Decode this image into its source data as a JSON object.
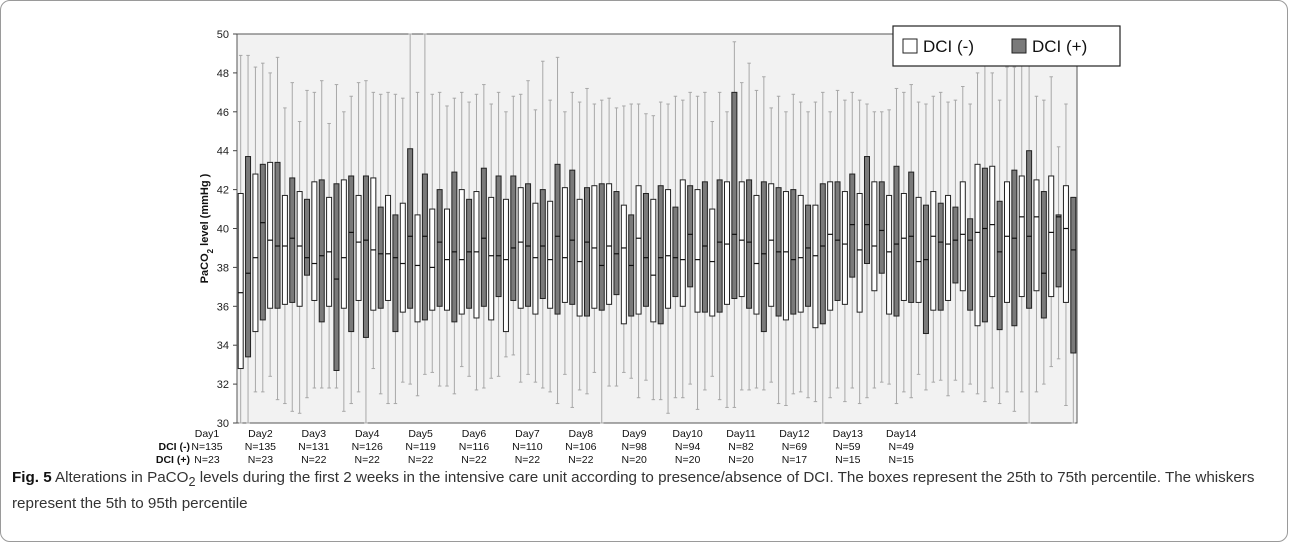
{
  "chart_data": {
    "type": "box",
    "ylabel": "PaCO",
    "ylabel_sub": "2",
    "ylabel_rest": " level (mmHg )",
    "ylim": [
      30,
      50
    ],
    "yticks": [
      "30",
      "32",
      "34",
      "36",
      "38",
      "40",
      "42",
      "44",
      "46",
      "48",
      "50"
    ],
    "legend_labels": [
      "DCI (-)",
      "DCI (+)"
    ],
    "legend_position": "top-right",
    "colors": {
      "dci_neg": "#ffffff",
      "dci_pos": "#7a7a7a",
      "plot_bg": "#f2f2f2",
      "whisker": "#a8a8a8"
    },
    "row_labels": [
      "DCI (-)",
      "DCI (+)"
    ],
    "days": [
      {
        "label": "Day1",
        "n_neg": "N=135",
        "n_pos": "N=23"
      },
      {
        "label": "Day2",
        "n_neg": "N=135",
        "n_pos": "N=23"
      },
      {
        "label": "Day3",
        "n_neg": "N=131",
        "n_pos": "N=22"
      },
      {
        "label": "Day4",
        "n_neg": "N=126",
        "n_pos": "N=22"
      },
      {
        "label": "Day5",
        "n_neg": "N=119",
        "n_pos": "N=22"
      },
      {
        "label": "Day6",
        "n_neg": "N=116",
        "n_pos": "N=22"
      },
      {
        "label": "Day7",
        "n_neg": "N=110",
        "n_pos": "N=22"
      },
      {
        "label": "Day8",
        "n_neg": "N=106",
        "n_pos": "N=22"
      },
      {
        "label": "Day9",
        "n_neg": "N=98",
        "n_pos": "N=20"
      },
      {
        "label": "Day10",
        "n_neg": "N=94",
        "n_pos": "N=20"
      },
      {
        "label": "Day11",
        "n_neg": "N=82",
        "n_pos": "N=20"
      },
      {
        "label": "Day12",
        "n_neg": "N=69",
        "n_pos": "N=17"
      },
      {
        "label": "Day13",
        "n_neg": "N=59",
        "n_pos": "N=15"
      },
      {
        "label": "Day14",
        "n_neg": "N=49",
        "n_pos": "N=15"
      }
    ],
    "boxes": [
      {
        "g": "neg",
        "q1": 32.8,
        "med": 36.7,
        "q3": 41.8,
        "lo": 30.0,
        "hi": 48.9
      },
      {
        "g": "pos",
        "q1": 33.4,
        "med": 37.7,
        "q3": 43.7,
        "lo": 30.0,
        "hi": 48.9
      },
      {
        "g": "neg",
        "q1": 34.7,
        "med": 38.5,
        "q3": 42.8,
        "lo": 31.6,
        "hi": 48.3
      },
      {
        "g": "pos",
        "q1": 35.3,
        "med": 40.3,
        "q3": 43.3,
        "lo": 31.6,
        "hi": 48.5
      },
      {
        "g": "neg",
        "q1": 35.9,
        "med": 39.4,
        "q3": 43.4,
        "lo": 32.4,
        "hi": 48.0
      },
      {
        "g": "pos",
        "q1": 35.9,
        "med": 39.1,
        "q3": 43.4,
        "lo": 31.2,
        "hi": 48.8
      },
      {
        "g": "neg",
        "q1": 36.1,
        "med": 39.1,
        "q3": 41.7,
        "lo": 31.0,
        "hi": 46.2
      },
      {
        "g": "pos",
        "q1": 36.2,
        "med": 39.5,
        "q3": 42.6,
        "lo": 30.6,
        "hi": 47.5
      },
      {
        "g": "neg",
        "q1": 36.0,
        "med": 39.1,
        "q3": 41.9,
        "lo": 30.5,
        "hi": 45.5
      },
      {
        "g": "pos",
        "q1": 37.6,
        "med": 38.5,
        "q3": 41.5,
        "lo": 31.3,
        "hi": 47.1
      },
      {
        "g": "neg",
        "q1": 36.3,
        "med": 38.2,
        "q3": 42.4,
        "lo": 31.8,
        "hi": 47.0
      },
      {
        "g": "pos",
        "q1": 35.2,
        "med": 38.6,
        "q3": 42.5,
        "lo": 31.8,
        "hi": 47.6
      },
      {
        "g": "neg",
        "q1": 36.0,
        "med": 38.8,
        "q3": 41.6,
        "lo": 31.8,
        "hi": 45.4
      },
      {
        "g": "pos",
        "q1": 32.7,
        "med": 37.4,
        "q3": 42.3,
        "lo": 31.8,
        "hi": 47.4
      },
      {
        "g": "neg",
        "q1": 35.9,
        "med": 38.5,
        "q3": 42.5,
        "lo": 30.6,
        "hi": 46.0
      },
      {
        "g": "pos",
        "q1": 34.7,
        "med": 39.8,
        "q3": 42.7,
        "lo": 31.0,
        "hi": 46.8
      },
      {
        "g": "neg",
        "q1": 36.3,
        "med": 39.3,
        "q3": 41.7,
        "lo": 31.6,
        "hi": 47.5
      },
      {
        "g": "pos",
        "q1": 34.4,
        "med": 39.4,
        "q3": 42.7,
        "lo": 30.0,
        "hi": 47.6
      },
      {
        "g": "neg",
        "q1": 35.8,
        "med": 38.9,
        "q3": 42.6,
        "lo": 32.8,
        "hi": 47.0
      },
      {
        "g": "pos",
        "q1": 35.9,
        "med": 38.7,
        "q3": 41.1,
        "lo": 31.5,
        "hi": 46.9
      },
      {
        "g": "neg",
        "q1": 36.3,
        "med": 38.7,
        "q3": 41.7,
        "lo": 31.0,
        "hi": 47.0
      },
      {
        "g": "pos",
        "q1": 34.7,
        "med": 38.5,
        "q3": 40.7,
        "lo": 31.0,
        "hi": 46.9
      },
      {
        "g": "neg",
        "q1": 35.7,
        "med": 38.2,
        "q3": 41.3,
        "lo": 32.1,
        "hi": 46.7
      },
      {
        "g": "pos",
        "q1": 35.9,
        "med": 39.6,
        "q3": 44.1,
        "lo": 32.0,
        "hi": 50.0
      },
      {
        "g": "neg",
        "q1": 35.2,
        "med": 38.1,
        "q3": 40.7,
        "lo": 31.4,
        "hi": 47.0
      },
      {
        "g": "pos",
        "q1": 35.3,
        "med": 39.6,
        "q3": 42.8,
        "lo": 32.5,
        "hi": 50.0
      },
      {
        "g": "neg",
        "q1": 35.8,
        "med": 38.0,
        "q3": 41.0,
        "lo": 32.6,
        "hi": 46.9
      },
      {
        "g": "pos",
        "q1": 36.0,
        "med": 39.3,
        "q3": 42.0,
        "lo": 31.9,
        "hi": 47.0
      },
      {
        "g": "neg",
        "q1": 35.8,
        "med": 38.4,
        "q3": 41.0,
        "lo": 31.9,
        "hi": 46.3
      },
      {
        "g": "pos",
        "q1": 35.2,
        "med": 38.8,
        "q3": 42.9,
        "lo": 31.5,
        "hi": 46.7
      },
      {
        "g": "neg",
        "q1": 35.6,
        "med": 38.4,
        "q3": 42.0,
        "lo": 32.9,
        "hi": 47.0
      },
      {
        "g": "pos",
        "q1": 35.9,
        "med": 38.8,
        "q3": 41.5,
        "lo": 32.4,
        "hi": 46.5
      },
      {
        "g": "neg",
        "q1": 35.4,
        "med": 38.8,
        "q3": 41.9,
        "lo": 31.7,
        "hi": 46.9
      },
      {
        "g": "pos",
        "q1": 36.0,
        "med": 39.5,
        "q3": 43.1,
        "lo": 31.8,
        "hi": 47.4
      },
      {
        "g": "neg",
        "q1": 35.3,
        "med": 38.6,
        "q3": 41.6,
        "lo": 32.3,
        "hi": 46.4
      },
      {
        "g": "pos",
        "q1": 36.5,
        "med": 38.6,
        "q3": 42.7,
        "lo": 32.4,
        "hi": 47.0
      },
      {
        "g": "neg",
        "q1": 34.7,
        "med": 38.4,
        "q3": 41.5,
        "lo": 33.4,
        "hi": 46.0
      },
      {
        "g": "pos",
        "q1": 36.3,
        "med": 39.0,
        "q3": 42.7,
        "lo": 33.5,
        "hi": 46.8
      },
      {
        "g": "neg",
        "q1": 35.9,
        "med": 39.3,
        "q3": 42.1,
        "lo": 32.1,
        "hi": 46.9
      },
      {
        "g": "pos",
        "q1": 36.0,
        "med": 39.1,
        "q3": 42.3,
        "lo": 32.5,
        "hi": 47.6
      },
      {
        "g": "neg",
        "q1": 35.6,
        "med": 38.5,
        "q3": 41.3,
        "lo": 32.1,
        "hi": 46.1
      },
      {
        "g": "pos",
        "q1": 36.4,
        "med": 39.1,
        "q3": 42.0,
        "lo": 31.8,
        "hi": 48.6
      },
      {
        "g": "neg",
        "q1": 35.9,
        "med": 38.4,
        "q3": 41.4,
        "lo": 31.6,
        "hi": 46.6
      },
      {
        "g": "pos",
        "q1": 35.6,
        "med": 39.6,
        "q3": 43.3,
        "lo": 31.0,
        "hi": 48.8
      },
      {
        "g": "neg",
        "q1": 36.2,
        "med": 38.5,
        "q3": 42.1,
        "lo": 32.5,
        "hi": 46.0
      },
      {
        "g": "pos",
        "q1": 36.1,
        "med": 39.4,
        "q3": 43.0,
        "lo": 30.8,
        "hi": 47.0
      },
      {
        "g": "neg",
        "q1": 35.5,
        "med": 38.3,
        "q3": 41.5,
        "lo": 31.7,
        "hi": 46.5
      },
      {
        "g": "pos",
        "q1": 35.5,
        "med": 39.3,
        "q3": 42.1,
        "lo": 31.5,
        "hi": 47.2
      },
      {
        "g": "neg",
        "q1": 35.9,
        "med": 39.0,
        "q3": 42.2,
        "lo": 32.6,
        "hi": 46.4
      },
      {
        "g": "pos",
        "q1": 35.8,
        "med": 38.1,
        "q3": 42.3,
        "lo": 30.0,
        "hi": 46.6
      },
      {
        "g": "neg",
        "q1": 36.1,
        "med": 39.1,
        "q3": 42.3,
        "lo": 31.9,
        "hi": 46.7
      },
      {
        "g": "pos",
        "q1": 36.6,
        "med": 38.7,
        "q3": 41.9,
        "lo": 31.9,
        "hi": 46.2
      },
      {
        "g": "neg",
        "q1": 35.1,
        "med": 39.0,
        "q3": 41.2,
        "lo": 32.6,
        "hi": 46.3
      },
      {
        "g": "pos",
        "q1": 35.5,
        "med": 38.1,
        "q3": 40.7,
        "lo": 32.3,
        "hi": 46.4
      },
      {
        "g": "neg",
        "q1": 35.6,
        "med": 39.5,
        "q3": 42.2,
        "lo": 31.3,
        "hi": 46.4
      },
      {
        "g": "pos",
        "q1": 36.0,
        "med": 38.5,
        "q3": 41.8,
        "lo": 32.2,
        "hi": 45.9
      },
      {
        "g": "neg",
        "q1": 35.2,
        "med": 37.6,
        "q3": 41.5,
        "lo": 31.2,
        "hi": 45.8
      },
      {
        "g": "pos",
        "q1": 35.1,
        "med": 38.5,
        "q3": 42.2,
        "lo": 31.2,
        "hi": 46.5
      },
      {
        "g": "neg",
        "q1": 35.9,
        "med": 38.6,
        "q3": 42.0,
        "lo": 30.5,
        "hi": 46.4
      },
      {
        "g": "pos",
        "q1": 36.5,
        "med": 38.5,
        "q3": 41.1,
        "lo": 31.3,
        "hi": 46.8
      },
      {
        "g": "neg",
        "q1": 36.0,
        "med": 38.4,
        "q3": 42.5,
        "lo": 31.3,
        "hi": 46.6
      },
      {
        "g": "pos",
        "q1": 37.0,
        "med": 39.7,
        "q3": 42.2,
        "lo": 32.0,
        "hi": 47.0
      },
      {
        "g": "neg",
        "q1": 35.7,
        "med": 38.4,
        "q3": 42.0,
        "lo": 30.7,
        "hi": 46.8
      },
      {
        "g": "pos",
        "q1": 35.7,
        "med": 39.1,
        "q3": 42.4,
        "lo": 31.7,
        "hi": 47.0
      },
      {
        "g": "neg",
        "q1": 35.5,
        "med": 38.3,
        "q3": 41.0,
        "lo": 32.4,
        "hi": 45.5
      },
      {
        "g": "pos",
        "q1": 35.7,
        "med": 39.3,
        "q3": 42.5,
        "lo": 31.2,
        "hi": 47.0
      },
      {
        "g": "neg",
        "q1": 36.1,
        "med": 39.2,
        "q3": 42.4,
        "lo": 30.8,
        "hi": 46.0
      },
      {
        "g": "pos",
        "q1": 36.4,
        "med": 39.7,
        "q3": 47.0,
        "lo": 30.8,
        "hi": 49.6
      },
      {
        "g": "neg",
        "q1": 36.5,
        "med": 39.4,
        "q3": 42.4,
        "lo": 31.7,
        "hi": 47.5
      },
      {
        "g": "pos",
        "q1": 35.9,
        "med": 39.3,
        "q3": 42.5,
        "lo": 31.7,
        "hi": 48.5
      },
      {
        "g": "neg",
        "q1": 35.6,
        "med": 38.2,
        "q3": 41.7,
        "lo": 31.8,
        "hi": 47.1
      },
      {
        "g": "pos",
        "q1": 34.7,
        "med": 38.7,
        "q3": 42.4,
        "lo": 31.7,
        "hi": 47.8
      },
      {
        "g": "neg",
        "q1": 36.0,
        "med": 39.4,
        "q3": 42.3,
        "lo": 32.1,
        "hi": 46.2
      },
      {
        "g": "pos",
        "q1": 35.5,
        "med": 38.8,
        "q3": 42.1,
        "lo": 31.0,
        "hi": 46.8
      },
      {
        "g": "neg",
        "q1": 35.3,
        "med": 38.8,
        "q3": 41.9,
        "lo": 30.9,
        "hi": 46.0
      },
      {
        "g": "pos",
        "q1": 35.6,
        "med": 38.4,
        "q3": 42.0,
        "lo": 31.5,
        "hi": 46.9
      },
      {
        "g": "neg",
        "q1": 35.7,
        "med": 38.5,
        "q3": 41.7,
        "lo": 31.6,
        "hi": 46.5
      },
      {
        "g": "pos",
        "q1": 36.0,
        "med": 39.0,
        "q3": 41.2,
        "lo": 31.3,
        "hi": 46.0
      },
      {
        "g": "neg",
        "q1": 34.9,
        "med": 38.6,
        "q3": 41.2,
        "lo": 31.1,
        "hi": 46.5
      },
      {
        "g": "pos",
        "q1": 35.1,
        "med": 39.1,
        "q3": 42.3,
        "lo": 30.0,
        "hi": 47.0
      },
      {
        "g": "neg",
        "q1": 35.8,
        "med": 39.7,
        "q3": 42.4,
        "lo": 31.3,
        "hi": 46.0
      },
      {
        "g": "pos",
        "q1": 36.3,
        "med": 39.4,
        "q3": 42.4,
        "lo": 31.8,
        "hi": 47.1
      },
      {
        "g": "neg",
        "q1": 36.1,
        "med": 39.2,
        "q3": 41.9,
        "lo": 31.1,
        "hi": 46.6
      },
      {
        "g": "pos",
        "q1": 37.5,
        "med": 40.2,
        "q3": 42.8,
        "lo": 31.8,
        "hi": 47.0
      },
      {
        "g": "neg",
        "q1": 35.7,
        "med": 38.9,
        "q3": 41.8,
        "lo": 31.0,
        "hi": 46.6
      },
      {
        "g": "pos",
        "q1": 38.2,
        "med": 40.2,
        "q3": 43.7,
        "lo": 31.3,
        "hi": 46.4
      },
      {
        "g": "neg",
        "q1": 36.8,
        "med": 39.1,
        "q3": 42.4,
        "lo": 31.8,
        "hi": 46.0
      },
      {
        "g": "pos",
        "q1": 37.7,
        "med": 39.9,
        "q3": 42.4,
        "lo": 32.1,
        "hi": 46.0
      },
      {
        "g": "neg",
        "q1": 35.6,
        "med": 38.8,
        "q3": 41.7,
        "lo": 32.0,
        "hi": 46.1
      },
      {
        "g": "pos",
        "q1": 35.5,
        "med": 39.2,
        "q3": 43.2,
        "lo": 31.0,
        "hi": 47.2
      },
      {
        "g": "neg",
        "q1": 36.3,
        "med": 39.5,
        "q3": 41.8,
        "lo": 31.6,
        "hi": 47.0
      },
      {
        "g": "pos",
        "q1": 36.2,
        "med": 39.6,
        "q3": 42.9,
        "lo": 31.3,
        "hi": 47.4
      },
      {
        "g": "neg",
        "q1": 36.2,
        "med": 38.3,
        "q3": 41.6,
        "lo": 32.5,
        "hi": 46.5
      },
      {
        "g": "pos",
        "q1": 34.6,
        "med": 38.4,
        "q3": 41.2,
        "lo": 31.7,
        "hi": 46.4
      },
      {
        "g": "neg",
        "q1": 35.8,
        "med": 39.6,
        "q3": 41.9,
        "lo": 32.1,
        "hi": 46.8
      },
      {
        "g": "pos",
        "q1": 35.8,
        "med": 39.3,
        "q3": 41.3,
        "lo": 32.2,
        "hi": 47.0
      },
      {
        "g": "neg",
        "q1": 36.3,
        "med": 39.2,
        "q3": 41.7,
        "lo": 31.4,
        "hi": 46.5
      },
      {
        "g": "pos",
        "q1": 37.2,
        "med": 39.4,
        "q3": 41.1,
        "lo": 32.2,
        "hi": 46.6
      },
      {
        "g": "neg",
        "q1": 36.8,
        "med": 39.7,
        "q3": 42.4,
        "lo": 31.6,
        "hi": 47.3
      },
      {
        "g": "pos",
        "q1": 35.8,
        "med": 39.4,
        "q3": 40.5,
        "lo": 32.0,
        "hi": 46.4
      },
      {
        "g": "neg",
        "q1": 35.0,
        "med": 39.8,
        "q3": 43.3,
        "lo": 31.5,
        "hi": 48.0
      },
      {
        "g": "pos",
        "q1": 35.2,
        "med": 40.0,
        "q3": 43.1,
        "lo": 31.1,
        "hi": 48.5
      },
      {
        "g": "neg",
        "q1": 36.5,
        "med": 40.2,
        "q3": 43.2,
        "lo": 31.8,
        "hi": 48.0
      },
      {
        "g": "pos",
        "q1": 34.8,
        "med": 38.8,
        "q3": 41.4,
        "lo": 31.0,
        "hi": 46.6
      },
      {
        "g": "neg",
        "q1": 36.2,
        "med": 39.6,
        "q3": 42.4,
        "lo": 31.6,
        "hi": 48.3
      },
      {
        "g": "pos",
        "q1": 35.0,
        "med": 39.5,
        "q3": 43.0,
        "lo": 30.6,
        "hi": 48.3
      },
      {
        "g": "neg",
        "q1": 36.5,
        "med": 40.6,
        "q3": 42.7,
        "lo": 31.6,
        "hi": 48.6
      },
      {
        "g": "pos",
        "q1": 35.9,
        "med": 39.6,
        "q3": 44.0,
        "lo": 30.0,
        "hi": 48.8
      },
      {
        "g": "neg",
        "q1": 36.8,
        "med": 40.6,
        "q3": 42.5,
        "lo": 31.6,
        "hi": 46.8
      },
      {
        "g": "pos",
        "q1": 35.4,
        "med": 37.7,
        "q3": 41.9,
        "lo": 32.0,
        "hi": 46.6
      },
      {
        "g": "neg",
        "q1": 36.5,
        "med": 39.8,
        "q3": 42.7,
        "lo": 32.9,
        "hi": 47.8
      },
      {
        "g": "pos",
        "q1": 37.0,
        "med": 40.6,
        "q3": 40.7,
        "lo": 33.3,
        "hi": 44.2
      },
      {
        "g": "neg",
        "q1": 36.2,
        "med": 40.0,
        "q3": 42.2,
        "lo": 30.9,
        "hi": 46.4
      },
      {
        "g": "pos",
        "q1": 33.6,
        "med": 38.9,
        "q3": 41.6,
        "lo": 30.0,
        "hi": 41.6
      }
    ]
  },
  "caption": {
    "fig_label": "Fig. 5",
    "text_1": " Alterations in PaCO",
    "sub": "2",
    "text_2": " levels during the first 2 weeks in the intensive care unit according to presence/absence of DCI. The boxes represent the 25th to 75th percentile. The whiskers represent the 5th to 95th percentile"
  }
}
